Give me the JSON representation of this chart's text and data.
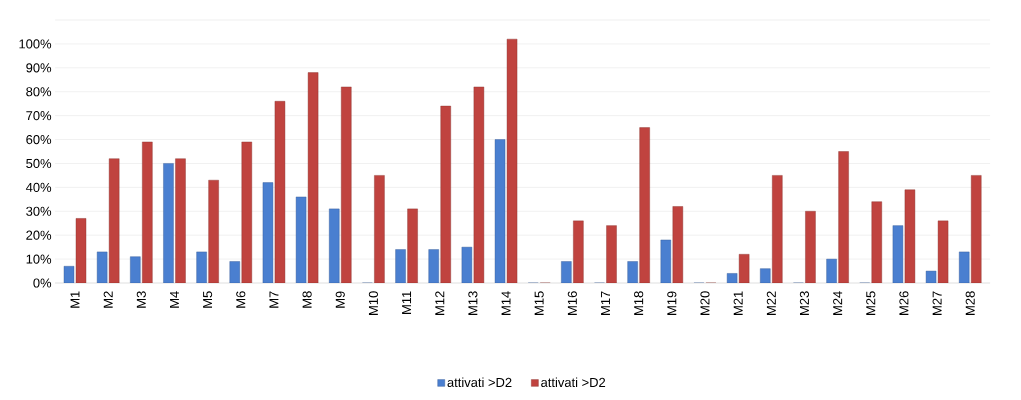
{
  "chart_data": {
    "type": "bar",
    "categories": [
      "M1",
      "M2",
      "M3",
      "M4",
      "M5",
      "M6",
      "M7",
      "M8",
      "M9",
      "M10",
      "M11",
      "M12",
      "M13",
      "M14",
      "M15",
      "M16",
      "M17",
      "M18",
      "M19",
      "M20",
      "M21",
      "M22",
      "M23",
      "M24",
      "M25",
      "M26",
      "M27",
      "M28"
    ],
    "series": [
      {
        "name": "attivati >D2",
        "color": "#4a7fd0",
        "values": [
          7,
          13,
          11,
          50,
          13,
          9,
          42,
          36,
          31,
          0,
          14,
          14,
          15,
          60,
          0,
          9,
          0,
          9,
          18,
          0,
          4,
          6,
          0,
          10,
          0,
          24,
          5,
          13
        ]
      },
      {
        "name": "attivati >D2",
        "color": "#c0433f",
        "values": [
          27,
          52,
          59,
          52,
          43,
          59,
          76,
          88,
          82,
          45,
          31,
          74,
          82,
          102,
          0,
          26,
          24,
          65,
          32,
          0,
          12,
          45,
          30,
          55,
          34,
          39,
          26,
          45
        ]
      }
    ],
    "ylim": [
      0,
      110
    ],
    "yticks": [
      {
        "value": 0,
        "label": "0%"
      },
      {
        "value": 10,
        "label": "10%"
      },
      {
        "value": 20,
        "label": "20%"
      },
      {
        "value": 30,
        "label": "30%"
      },
      {
        "value": 40,
        "label": "40%"
      },
      {
        "value": 50,
        "label": "50%"
      },
      {
        "value": 60,
        "label": "60%"
      },
      {
        "value": 70,
        "label": "70%"
      },
      {
        "value": 80,
        "label": "80%"
      },
      {
        "value": 90,
        "label": "90%"
      },
      {
        "value": 100,
        "label": "100%"
      },
      {
        "value": 110,
        "label": null
      }
    ],
    "grid": "y",
    "legend": "bottom"
  }
}
